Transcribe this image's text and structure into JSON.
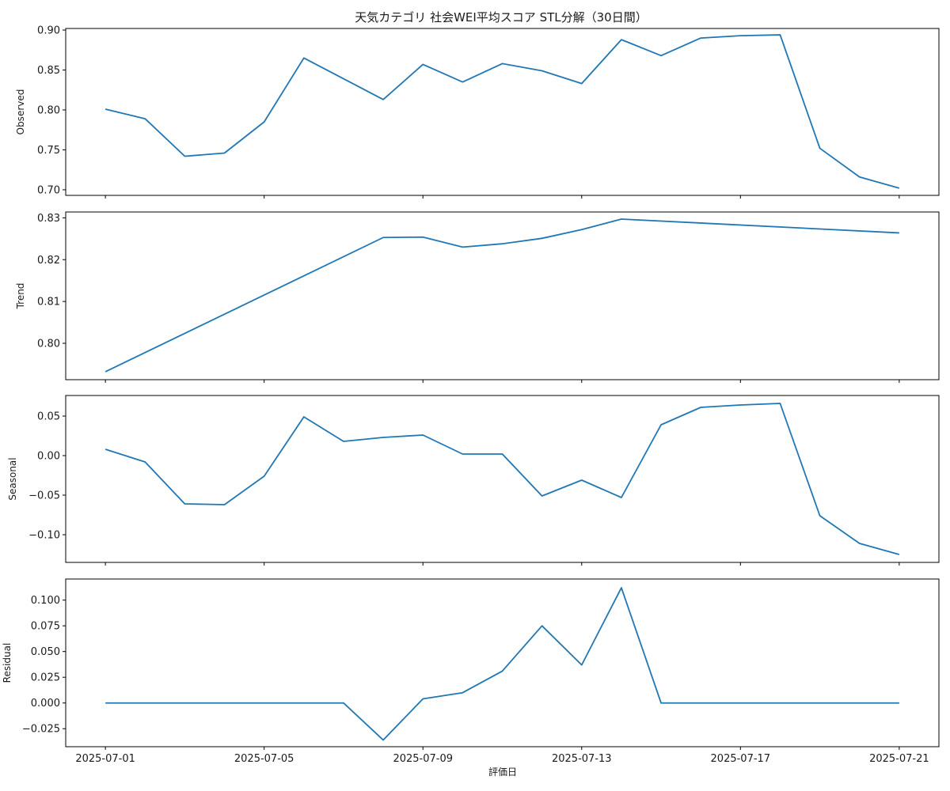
{
  "figure": {
    "title": "天気カテゴリ 社会WEI平均スコア STL分解（30日間）",
    "xlabel": "評価日"
  },
  "style": {
    "line_color": "#1f77b4",
    "axis_color": "#000000",
    "background": "#ffffff"
  },
  "chart_data": [
    {
      "type": "line",
      "ylabel": "Observed",
      "x": [
        "2025-07-01",
        "2025-07-02",
        "2025-07-03",
        "2025-07-04",
        "2025-07-05",
        "2025-07-06",
        "2025-07-07",
        "2025-07-08",
        "2025-07-09",
        "2025-07-10",
        "2025-07-11",
        "2025-07-12",
        "2025-07-13",
        "2025-07-14",
        "2025-07-15",
        "2025-07-16",
        "2025-07-17",
        "2025-07-18",
        "2025-07-19",
        "2025-07-20",
        "2025-07-21"
      ],
      "values": [
        0.801,
        0.789,
        0.742,
        0.746,
        0.785,
        0.865,
        0.839,
        0.813,
        0.857,
        0.835,
        0.858,
        0.849,
        0.833,
        0.888,
        0.868,
        0.89,
        0.893,
        0.894,
        0.752,
        0.716,
        0.702
      ],
      "ylim": [
        0.693,
        0.902
      ],
      "yticks": [
        "0.70",
        "0.75",
        "0.80",
        "0.85",
        "0.90"
      ],
      "ytick_values": [
        0.7,
        0.75,
        0.8,
        0.85,
        0.9
      ]
    },
    {
      "type": "line",
      "ylabel": "Trend",
      "x": [
        "2025-07-01",
        "2025-07-08",
        "2025-07-09",
        "2025-07-10",
        "2025-07-11",
        "2025-07-12",
        "2025-07-13",
        "2025-07-14",
        "2025-07-21"
      ],
      "values": [
        0.7932,
        0.8253,
        0.8254,
        0.823,
        0.8238,
        0.8251,
        0.8272,
        0.8297,
        0.8264
      ],
      "ylim": [
        0.7913,
        0.8314
      ],
      "yticks": [
        "0.80",
        "0.81",
        "0.82",
        "0.83"
      ],
      "ytick_values": [
        0.8,
        0.81,
        0.82,
        0.83
      ]
    },
    {
      "type": "line",
      "ylabel": "Seasonal",
      "x": [
        "2025-07-01",
        "2025-07-02",
        "2025-07-03",
        "2025-07-04",
        "2025-07-05",
        "2025-07-06",
        "2025-07-07",
        "2025-07-08",
        "2025-07-09",
        "2025-07-10",
        "2025-07-11",
        "2025-07-12",
        "2025-07-13",
        "2025-07-14",
        "2025-07-15",
        "2025-07-16",
        "2025-07-17",
        "2025-07-18",
        "2025-07-19",
        "2025-07-20",
        "2025-07-21"
      ],
      "values": [
        0.008,
        -0.008,
        -0.061,
        -0.062,
        -0.026,
        0.049,
        0.018,
        0.023,
        0.026,
        0.002,
        0.002,
        -0.051,
        -0.031,
        -0.053,
        0.039,
        0.061,
        0.064,
        0.066,
        -0.076,
        -0.111,
        -0.125
      ],
      "ylim": [
        -0.135,
        0.076
      ],
      "yticks": [
        "−0.10",
        "−0.05",
        "0.00",
        "0.05"
      ],
      "ytick_values": [
        -0.1,
        -0.05,
        0.0,
        0.05
      ]
    },
    {
      "type": "line",
      "ylabel": "Residual",
      "x": [
        "2025-07-01",
        "2025-07-02",
        "2025-07-03",
        "2025-07-04",
        "2025-07-05",
        "2025-07-06",
        "2025-07-07",
        "2025-07-08",
        "2025-07-09",
        "2025-07-10",
        "2025-07-11",
        "2025-07-12",
        "2025-07-13",
        "2025-07-14",
        "2025-07-15",
        "2025-07-16",
        "2025-07-17",
        "2025-07-18",
        "2025-07-19",
        "2025-07-20",
        "2025-07-21"
      ],
      "values": [
        0,
        0,
        0,
        0,
        0,
        0,
        0,
        -0.036,
        0.004,
        0.01,
        0.031,
        0.075,
        0.037,
        0.112,
        0,
        0,
        0,
        0,
        0,
        0,
        0
      ],
      "ylim": [
        -0.0425,
        0.1205
      ],
      "yticks": [
        "−0.025",
        "0.000",
        "0.025",
        "0.050",
        "0.075",
        "0.100"
      ],
      "ytick_values": [
        -0.025,
        0.0,
        0.025,
        0.05,
        0.075,
        0.1
      ]
    }
  ],
  "x_axis": {
    "start_date": "2025-07-01",
    "end_date": "2025-07-21",
    "xlim": [
      "2025-06-30",
      "2025-07-22"
    ],
    "ticks": [
      "2025-07-01",
      "2025-07-05",
      "2025-07-09",
      "2025-07-13",
      "2025-07-17",
      "2025-07-21"
    ],
    "tick_labels": [
      "2025-07-01",
      "2025-07-05",
      "2025-07-09",
      "2025-07-13",
      "2025-07-17",
      "2025-07-21"
    ]
  }
}
